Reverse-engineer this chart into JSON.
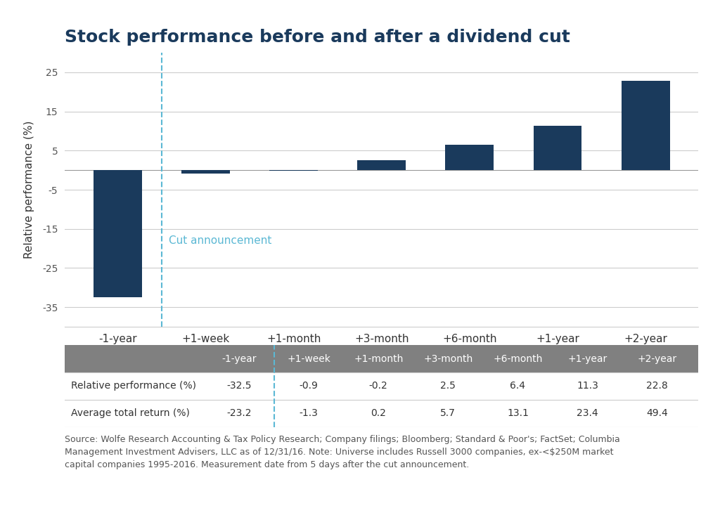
{
  "title": "Stock performance before and after a dividend cut",
  "categories": [
    "-1-year",
    "+1-week",
    "+1-month",
    "+3-month",
    "+6-month",
    "+1-year",
    "+2-year"
  ],
  "values": [
    -32.5,
    -0.9,
    -0.2,
    2.5,
    6.4,
    11.3,
    22.8
  ],
  "bar_color": "#1a3a5c",
  "ylabel": "Relative performance (%)",
  "ylim": [
    -40,
    30
  ],
  "yticks": [
    -35,
    -25,
    -15,
    -5,
    5,
    15,
    25
  ],
  "ytick_labels": [
    "-35",
    "-25",
    "-15",
    "-5",
    "5",
    "15",
    "25"
  ],
  "cut_annotation_text": "Cut announcement",
  "cut_annotation_color": "#5bb8d4",
  "background_color": "#ffffff",
  "table_header_bg": "#808080",
  "table_header_text_color": "#ffffff",
  "table_row1_label": "Relative performance (%)",
  "table_row2_label": "Average total return (%)",
  "table_row1_values": [
    "-32.5",
    "-0.9",
    "-0.2",
    "2.5",
    "6.4",
    "11.3",
    "22.8"
  ],
  "table_row2_values": [
    "-23.2",
    "-1.3",
    "0.2",
    "5.7",
    "13.1",
    "23.4",
    "49.4"
  ],
  "source_text": "Source: Wolfe Research Accounting & Tax Policy Research; Company filings; Bloomberg; Standard & Poor's; FactSet; Columbia\nManagement Investment Advisers, LLC as of 12/31/16. Note: Universe includes Russell 3000 companies, ex-<$250M market\ncapital companies 1995-2016. Measurement date from 5 days after the cut announcement.",
  "title_fontsize": 18,
  "axis_fontsize": 11,
  "tick_fontsize": 10,
  "source_fontsize": 9,
  "col_widths": [
    0.22,
    0.11,
    0.11,
    0.11,
    0.11,
    0.11,
    0.11,
    0.11
  ]
}
